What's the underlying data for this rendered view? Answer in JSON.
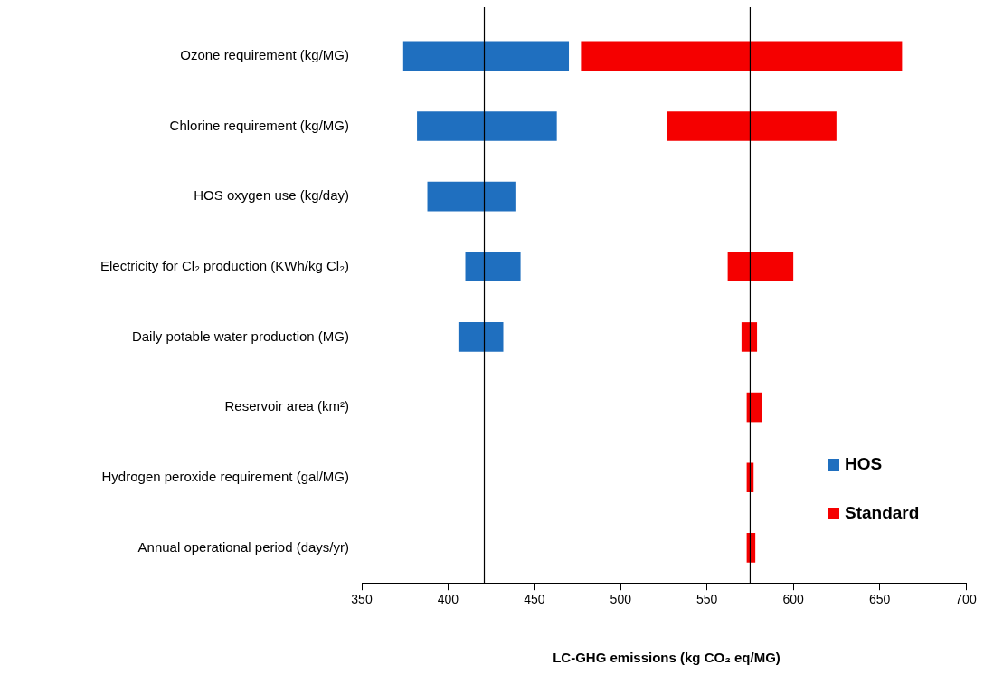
{
  "chart_data": {
    "type": "bar",
    "orientation": "horizontal",
    "xlabel": "LC-GHG emissions (kg CO₂ eq/MG)",
    "categories": [
      "Ozone requirement (kg/MG)",
      "Chlorine requirement (kg/MG)",
      "HOS oxygen use (kg/day)",
      "Electricity for Cl₂ production (KWh/kg Cl₂)",
      "Daily potable water production (MG)",
      "Reservoir area (km²)",
      "Hydrogen peroxide requirement (gal/MG)",
      "Annual operational period (days/yr)"
    ],
    "series": [
      {
        "name": "HOS",
        "color": "#1f6fbf",
        "base": [
          374,
          382,
          388,
          410,
          406,
          null,
          null,
          null
        ],
        "values": [
          96,
          81,
          51,
          32,
          26,
          null,
          null,
          null
        ]
      },
      {
        "name": "Standard",
        "color": "#f50000",
        "base": [
          477,
          527,
          null,
          562,
          570,
          573,
          573,
          573
        ],
        "values": [
          186,
          98,
          null,
          38,
          9,
          9,
          4,
          5
        ]
      }
    ],
    "xlim": [
      350,
      700
    ],
    "xticks": [
      350,
      400,
      450,
      500,
      550,
      600,
      650,
      700
    ],
    "ref_lines": [
      {
        "axis": "x",
        "value": 421,
        "color": "#000000"
      },
      {
        "axis": "x",
        "value": 575,
        "color": "#000000"
      }
    ],
    "grid": false,
    "legend": "right"
  }
}
